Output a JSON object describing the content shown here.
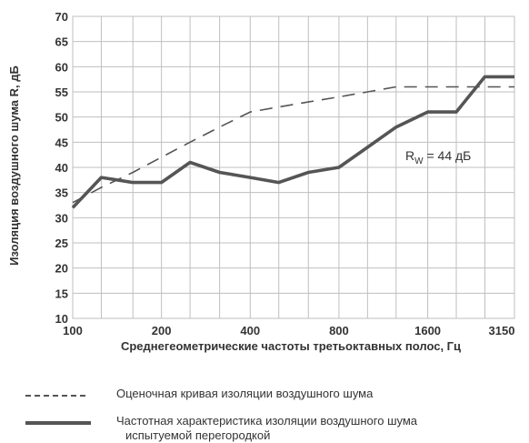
{
  "chart_data": {
    "type": "line",
    "title": "",
    "xlabel": "Среднегеометрические частоты третьоктавных полос,  Гц",
    "ylabel": "Изоляция воздушного шума R, дБ",
    "x": [
      100,
      125,
      160,
      200,
      250,
      315,
      400,
      500,
      630,
      800,
      1000,
      1250,
      1600,
      2000,
      2500,
      3150
    ],
    "x_scale": "log",
    "xlim": [
      100,
      3150
    ],
    "x_tick_labels": [
      "100",
      "200",
      "400",
      "800",
      "1600",
      "3150"
    ],
    "x_tick_values": [
      100,
      200,
      400,
      800,
      1600,
      3150
    ],
    "ylim": [
      10,
      70
    ],
    "y_ticks": [
      10,
      15,
      20,
      25,
      30,
      35,
      40,
      45,
      50,
      55,
      60,
      65,
      70
    ],
    "grid": true,
    "series": [
      {
        "name": "Оценочная кривая  изоляции  воздушного  шума",
        "style": "dashed",
        "values": [
          33,
          36,
          39,
          42,
          45,
          48,
          51,
          52,
          53,
          54,
          55,
          56,
          56,
          56,
          56,
          56
        ]
      },
      {
        "name": "Частотная характеристика изоляции воздушного шума испытуемой перегородкой",
        "style": "solid",
        "values": [
          32,
          38,
          37,
          37,
          41,
          39,
          38,
          37,
          39,
          40,
          44,
          48,
          51,
          51,
          58,
          58
        ]
      }
    ],
    "annotation": {
      "text_main": "R",
      "text_sub": "W",
      "text_rest": " = 44 дБ"
    },
    "colors": {
      "line": "#555555",
      "grid": "#bfbfbf"
    }
  },
  "legend": [
    {
      "text": "Оценочная кривая  изоляции  воздушного  шума"
    },
    {
      "text": "Частотная характеристика изоляции воздушного шума",
      "text2": "испытуемой перегородкой"
    }
  ]
}
